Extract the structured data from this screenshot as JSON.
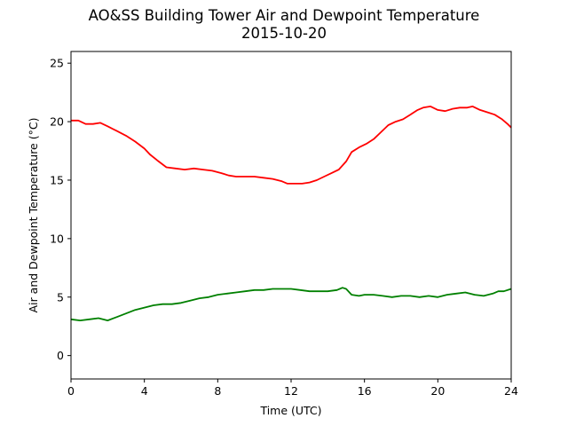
{
  "chart_data": {
    "type": "line",
    "title": "AO&SS Building Tower Air and Dewpoint Temperature",
    "subtitle": "2015-10-20",
    "xlabel": "Time (UTC)",
    "ylabel": "Air and Dewpoint Temperature (°C)",
    "xlim": [
      0,
      24
    ],
    "ylim": [
      -2,
      26
    ],
    "xticks": [
      0,
      4,
      8,
      12,
      16,
      20,
      24
    ],
    "yticks": [
      0,
      5,
      10,
      15,
      20,
      25
    ],
    "grid": false,
    "series": [
      {
        "color": "#ff0000",
        "x": [
          0,
          0.4,
          0.8,
          1.2,
          1.6,
          2,
          2.5,
          3,
          3.5,
          4,
          4.3,
          4.7,
          5.2,
          5.7,
          6.2,
          6.7,
          7.2,
          7.7,
          8.2,
          8.6,
          9,
          9.5,
          10,
          10.5,
          11,
          11.5,
          11.8,
          12.2,
          12.6,
          13,
          13.4,
          13.8,
          14.2,
          14.6,
          15,
          15.3,
          15.7,
          16.1,
          16.5,
          16.9,
          17.3,
          17.7,
          18.1,
          18.5,
          18.9,
          19.2,
          19.6,
          20,
          20.4,
          20.8,
          21.2,
          21.6,
          21.9,
          22.3,
          22.7,
          23.1,
          23.5,
          23.8,
          24
        ],
        "y": [
          20.1,
          20.1,
          19.8,
          19.8,
          19.9,
          19.6,
          19.2,
          18.8,
          18.3,
          17.7,
          17.2,
          16.7,
          16.1,
          16.0,
          15.9,
          16.0,
          15.9,
          15.8,
          15.6,
          15.4,
          15.3,
          15.3,
          15.3,
          15.2,
          15.1,
          14.9,
          14.7,
          14.7,
          14.7,
          14.8,
          15.0,
          15.3,
          15.6,
          15.9,
          16.6,
          17.4,
          17.8,
          18.1,
          18.5,
          19.1,
          19.7,
          20.0,
          20.2,
          20.6,
          21.0,
          21.2,
          21.3,
          21.0,
          20.9,
          21.1,
          21.2,
          21.2,
          21.3,
          21.0,
          20.8,
          20.6,
          20.2,
          19.8,
          19.5
        ]
      },
      {
        "color": "#008000",
        "x": [
          0,
          0.5,
          1,
          1.5,
          2,
          2.5,
          3,
          3.5,
          4,
          4.5,
          5,
          5.5,
          6,
          6.5,
          7,
          7.5,
          8,
          8.5,
          9,
          9.5,
          10,
          10.5,
          11,
          11.5,
          12,
          12.5,
          13,
          13.5,
          14,
          14.5,
          14.8,
          15,
          15.3,
          15.7,
          16,
          16.5,
          17,
          17.5,
          18,
          18.5,
          19,
          19.5,
          20,
          20.5,
          21,
          21.5,
          22,
          22.5,
          23,
          23.3,
          23.6,
          24
        ],
        "y": [
          3.1,
          3.0,
          3.1,
          3.2,
          3.0,
          3.3,
          3.6,
          3.9,
          4.1,
          4.3,
          4.4,
          4.4,
          4.5,
          4.7,
          4.9,
          5.0,
          5.2,
          5.3,
          5.4,
          5.5,
          5.6,
          5.6,
          5.7,
          5.7,
          5.7,
          5.6,
          5.5,
          5.5,
          5.5,
          5.6,
          5.8,
          5.7,
          5.2,
          5.1,
          5.2,
          5.2,
          5.1,
          5.0,
          5.1,
          5.1,
          5.0,
          5.1,
          5.0,
          5.2,
          5.3,
          5.4,
          5.2,
          5.1,
          5.3,
          5.5,
          5.5,
          5.7
        ]
      }
    ]
  }
}
